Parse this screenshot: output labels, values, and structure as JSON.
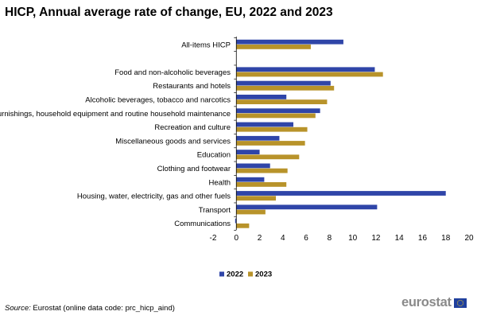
{
  "title": "HICP, Annual average rate of change, EU, 2022 and 2023",
  "source_prefix": "Source:",
  "source_text": "Eurostat (online data code: prc_hicp_aind)",
  "brand": "eurostat",
  "colors": {
    "series_2022": "#2f45a8",
    "series_2023": "#b8932a",
    "axis": "#000000"
  },
  "icons": {
    "eu_flag": "eu-flag-icon"
  },
  "chart_data": {
    "type": "bar",
    "orientation": "horizontal",
    "title": "HICP, Annual average rate of change, EU, 2022 and 2023",
    "categories": [
      "All-items HICP",
      "",
      "Food and non-alcoholic beverages",
      "Restaurants and hotels",
      "Alcoholic beverages, tobacco and narcotics",
      "Furnishings, household equipment and routine household maintenance",
      "Recreation and culture",
      "Miscellaneous goods and services",
      "Education",
      "Clothing and footwear",
      "Health",
      "Housing, water, electricity, gas and other fuels",
      "Transport",
      "Communications"
    ],
    "series": [
      {
        "name": "2022",
        "color": "#2f45a8",
        "values": [
          9.2,
          null,
          11.9,
          8.1,
          4.3,
          7.2,
          4.9,
          3.7,
          2.0,
          2.9,
          2.4,
          18.0,
          12.1,
          -0.1
        ]
      },
      {
        "name": "2023",
        "color": "#b8932a",
        "values": [
          6.4,
          null,
          12.6,
          8.4,
          7.8,
          6.8,
          6.1,
          5.9,
          5.4,
          4.4,
          4.3,
          3.4,
          2.5,
          1.1
        ]
      }
    ],
    "xlim": [
      -2,
      20
    ],
    "xticks": [
      "-2",
      "0",
      "2",
      "4",
      "6",
      "8",
      "10",
      "12",
      "14",
      "16",
      "18",
      "20"
    ],
    "xlabel": "",
    "ylabel": "",
    "legend_position": "bottom-center",
    "grid": false
  }
}
